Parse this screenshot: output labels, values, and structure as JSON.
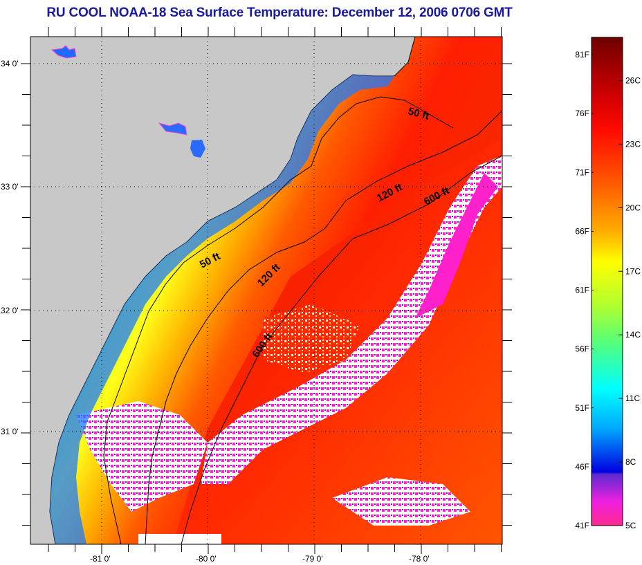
{
  "title": "RU COOL  NOAA-18  Sea Surface Temperature:  December 12, 2006 0706 GMT",
  "map": {
    "latitude_labels": [
      "34 0'",
      "33 0'",
      "32 0'",
      "31 0'"
    ],
    "longitude_labels": [
      "-81 0'",
      "-80 0'",
      "-79 0'",
      "-78 0'"
    ],
    "contour_labels": {
      "c50a": "50 ft",
      "c50b": "50 ft",
      "c120a": "120 ft",
      "c120b": "120 ft",
      "c600a": "600 ft",
      "c600b": "600 ft"
    },
    "land_color": "#c8c8c8"
  },
  "colorbar": {
    "fahrenheit_labels": [
      "81F",
      "76F",
      "71F",
      "66F",
      "61F",
      "56F",
      "51F",
      "46F",
      "41F"
    ],
    "celsius_labels": [
      "26C",
      "23C",
      "20C",
      "17C",
      "14C",
      "11C",
      "8C",
      "5C"
    ],
    "colors": {
      "hot": "#7a0000",
      "red": "#ff1a00",
      "orange": "#ff8c00",
      "yellow": "#ffff00",
      "green": "#9aff50",
      "cyan": "#00ffff",
      "blue": "#0000ff",
      "magenta": "#ff1aff"
    }
  }
}
